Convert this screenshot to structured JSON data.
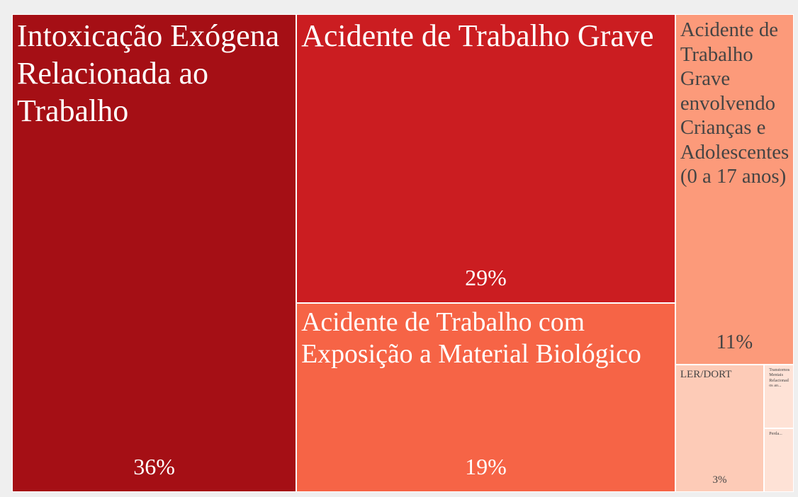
{
  "chart_data": {
    "type": "treemap",
    "categories": [
      "Intoxicação Exógena Relacionada ao Trabalho",
      "Acidente de Trabalho Grave",
      "Acidente de Trabalho com Exposição a Material Biológico",
      "Acidente de Trabalho Grave envolvendo Crianças e Adolescentes (0 a 17 anos)",
      "LER/DORT",
      "Transtornos Mentais Relacionados ao...",
      "Perda..."
    ],
    "values": [
      36,
      29,
      19,
      11,
      3,
      0.5,
      0.5
    ],
    "value_labels": [
      "36%",
      "29%",
      "19%",
      "11%",
      "3%",
      null,
      null
    ],
    "colors": [
      "#a50f15",
      "#cb1d21",
      "#f66446",
      "#fc9a7a",
      "#fdcbb7",
      "#fee2d6",
      "#fee2d6"
    ]
  }
}
